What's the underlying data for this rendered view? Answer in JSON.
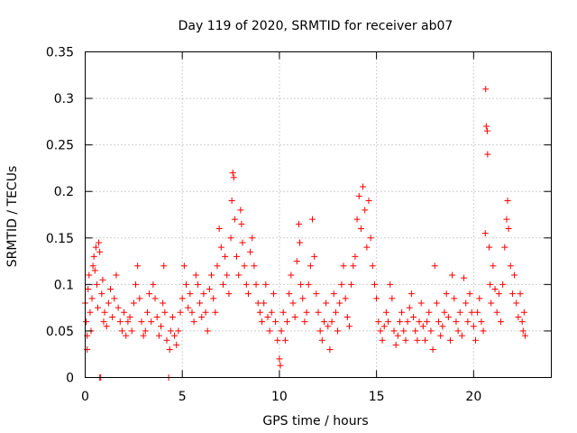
{
  "chart_data": {
    "type": "scatter",
    "title": "Day 119 of 2020, SRMTID for receiver ab07",
    "xlabel": "GPS time / hours",
    "ylabel": "SRMTID / TECUs",
    "xlim": [
      0,
      24
    ],
    "ylim": [
      0,
      0.35
    ],
    "x_ticks": [
      0,
      5,
      10,
      15,
      20
    ],
    "x_tick_labels": [
      "0",
      "5",
      "10",
      "15",
      "20"
    ],
    "y_ticks": [
      0,
      0.05,
      0.1,
      0.15,
      0.2,
      0.25,
      0.3,
      0.35
    ],
    "y_tick_labels": [
      "0",
      "0.05",
      "0.1",
      "0.15",
      "0.2",
      "0.25",
      "0.3",
      "0.35"
    ],
    "grid": true,
    "marker": "plus",
    "color": "#ff0000",
    "series": [
      {
        "name": "SRMTID",
        "points": [
          [
            0.0,
            0.08
          ],
          [
            0.05,
            0.06
          ],
          [
            0.1,
            0.045
          ],
          [
            0.1,
            0.03
          ],
          [
            0.15,
            0.095
          ],
          [
            0.2,
            0.11
          ],
          [
            0.25,
            0.07
          ],
          [
            0.3,
            0.05
          ],
          [
            0.35,
            0.085
          ],
          [
            0.4,
            0.12
          ],
          [
            0.45,
            0.13
          ],
          [
            0.5,
            0.115
          ],
          [
            0.55,
            0.14
          ],
          [
            0.6,
            0.1
          ],
          [
            0.65,
            0.075
          ],
          [
            0.7,
            0.145
          ],
          [
            0.75,
            0.135
          ],
          [
            0.75,
            0.0
          ],
          [
            0.8,
            0.0
          ],
          [
            0.85,
            0.09
          ],
          [
            0.9,
            0.105
          ],
          [
            0.95,
            0.06
          ],
          [
            1.0,
            0.07
          ],
          [
            1.1,
            0.055
          ],
          [
            1.2,
            0.08
          ],
          [
            1.3,
            0.095
          ],
          [
            1.4,
            0.065
          ],
          [
            1.5,
            0.085
          ],
          [
            1.6,
            0.11
          ],
          [
            1.7,
            0.075
          ],
          [
            1.8,
            0.06
          ],
          [
            1.9,
            0.05
          ],
          [
            2.0,
            0.07
          ],
          [
            2.1,
            0.045
          ],
          [
            2.2,
            0.06
          ],
          [
            2.3,
            0.065
          ],
          [
            2.4,
            0.05
          ],
          [
            2.5,
            0.08
          ],
          [
            2.6,
            0.1
          ],
          [
            2.7,
            0.12
          ],
          [
            2.8,
            0.085
          ],
          [
            2.9,
            0.06
          ],
          [
            3.0,
            0.045
          ],
          [
            3.1,
            0.05
          ],
          [
            3.2,
            0.07
          ],
          [
            3.3,
            0.09
          ],
          [
            3.4,
            0.06
          ],
          [
            3.5,
            0.1
          ],
          [
            3.6,
            0.085
          ],
          [
            3.7,
            0.065
          ],
          [
            3.8,
            0.045
          ],
          [
            3.9,
            0.055
          ],
          [
            4.0,
            0.08
          ],
          [
            4.05,
            0.12
          ],
          [
            4.1,
            0.07
          ],
          [
            4.2,
            0.04
          ],
          [
            4.3,
            0.0
          ],
          [
            4.35,
            0.03
          ],
          [
            4.4,
            0.05
          ],
          [
            4.5,
            0.065
          ],
          [
            4.6,
            0.045
          ],
          [
            4.7,
            0.035
          ],
          [
            4.8,
            0.05
          ],
          [
            4.9,
            0.07
          ],
          [
            5.0,
            0.085
          ],
          [
            5.1,
            0.12
          ],
          [
            5.2,
            0.1
          ],
          [
            5.3,
            0.075
          ],
          [
            5.4,
            0.09
          ],
          [
            5.5,
            0.07
          ],
          [
            5.6,
            0.06
          ],
          [
            5.7,
            0.11
          ],
          [
            5.8,
            0.1
          ],
          [
            5.9,
            0.08
          ],
          [
            6.0,
            0.065
          ],
          [
            6.1,
            0.09
          ],
          [
            6.2,
            0.07
          ],
          [
            6.3,
            0.05
          ],
          [
            6.4,
            0.095
          ],
          [
            6.5,
            0.11
          ],
          [
            6.6,
            0.085
          ],
          [
            6.7,
            0.07
          ],
          [
            6.8,
            0.12
          ],
          [
            6.9,
            0.16
          ],
          [
            7.0,
            0.14
          ],
          [
            7.1,
            0.1
          ],
          [
            7.2,
            0.13
          ],
          [
            7.3,
            0.11
          ],
          [
            7.4,
            0.09
          ],
          [
            7.5,
            0.15
          ],
          [
            7.55,
            0.19
          ],
          [
            7.6,
            0.22
          ],
          [
            7.65,
            0.215
          ],
          [
            7.7,
            0.17
          ],
          [
            7.8,
            0.13
          ],
          [
            7.9,
            0.11
          ],
          [
            8.0,
            0.18
          ],
          [
            8.05,
            0.165
          ],
          [
            8.1,
            0.145
          ],
          [
            8.2,
            0.12
          ],
          [
            8.3,
            0.1
          ],
          [
            8.4,
            0.09
          ],
          [
            8.5,
            0.135
          ],
          [
            8.6,
            0.15
          ],
          [
            8.7,
            0.12
          ],
          [
            8.8,
            0.1
          ],
          [
            8.9,
            0.08
          ],
          [
            9.0,
            0.07
          ],
          [
            9.1,
            0.06
          ],
          [
            9.2,
            0.08
          ],
          [
            9.3,
            0.1
          ],
          [
            9.4,
            0.065
          ],
          [
            9.5,
            0.05
          ],
          [
            9.6,
            0.07
          ],
          [
            9.7,
            0.09
          ],
          [
            9.8,
            0.06
          ],
          [
            9.9,
            0.04
          ],
          [
            10.0,
            0.02
          ],
          [
            10.05,
            0.013
          ],
          [
            10.1,
            0.05
          ],
          [
            10.2,
            0.07
          ],
          [
            10.3,
            0.04
          ],
          [
            10.4,
            0.06
          ],
          [
            10.5,
            0.09
          ],
          [
            10.6,
            0.11
          ],
          [
            10.7,
            0.08
          ],
          [
            10.8,
            0.065
          ],
          [
            10.9,
            0.125
          ],
          [
            11.0,
            0.165
          ],
          [
            11.05,
            0.145
          ],
          [
            11.1,
            0.1
          ],
          [
            11.2,
            0.085
          ],
          [
            11.3,
            0.06
          ],
          [
            11.4,
            0.07
          ],
          [
            11.5,
            0.1
          ],
          [
            11.6,
            0.12
          ],
          [
            11.7,
            0.17
          ],
          [
            11.8,
            0.13
          ],
          [
            11.9,
            0.09
          ],
          [
            12.0,
            0.07
          ],
          [
            12.1,
            0.05
          ],
          [
            12.2,
            0.04
          ],
          [
            12.3,
            0.06
          ],
          [
            12.4,
            0.08
          ],
          [
            12.5,
            0.055
          ],
          [
            12.6,
            0.03
          ],
          [
            12.7,
            0.06
          ],
          [
            12.8,
            0.09
          ],
          [
            12.9,
            0.07
          ],
          [
            13.0,
            0.05
          ],
          [
            13.1,
            0.08
          ],
          [
            13.2,
            0.1
          ],
          [
            13.3,
            0.12
          ],
          [
            13.4,
            0.085
          ],
          [
            13.5,
            0.065
          ],
          [
            13.6,
            0.055
          ],
          [
            13.7,
            0.1
          ],
          [
            13.8,
            0.12
          ],
          [
            13.9,
            0.13
          ],
          [
            14.0,
            0.17
          ],
          [
            14.1,
            0.195
          ],
          [
            14.2,
            0.16
          ],
          [
            14.3,
            0.205
          ],
          [
            14.4,
            0.18
          ],
          [
            14.5,
            0.14
          ],
          [
            14.6,
            0.19
          ],
          [
            14.7,
            0.15
          ],
          [
            14.8,
            0.12
          ],
          [
            14.9,
            0.1
          ],
          [
            15.0,
            0.085
          ],
          [
            15.1,
            0.06
          ],
          [
            15.2,
            0.05
          ],
          [
            15.3,
            0.04
          ],
          [
            15.4,
            0.055
          ],
          [
            15.5,
            0.07
          ],
          [
            15.6,
            0.06
          ],
          [
            15.7,
            0.1
          ],
          [
            15.8,
            0.085
          ],
          [
            15.9,
            0.05
          ],
          [
            16.0,
            0.035
          ],
          [
            16.1,
            0.045
          ],
          [
            16.2,
            0.06
          ],
          [
            16.3,
            0.07
          ],
          [
            16.4,
            0.05
          ],
          [
            16.5,
            0.04
          ],
          [
            16.6,
            0.06
          ],
          [
            16.7,
            0.075
          ],
          [
            16.8,
            0.09
          ],
          [
            16.9,
            0.065
          ],
          [
            17.0,
            0.05
          ],
          [
            17.1,
            0.04
          ],
          [
            17.2,
            0.06
          ],
          [
            17.3,
            0.08
          ],
          [
            17.4,
            0.055
          ],
          [
            17.5,
            0.04
          ],
          [
            17.6,
            0.06
          ],
          [
            17.7,
            0.07
          ],
          [
            17.8,
            0.05
          ],
          [
            17.9,
            0.03
          ],
          [
            18.0,
            0.12
          ],
          [
            18.1,
            0.08
          ],
          [
            18.2,
            0.06
          ],
          [
            18.3,
            0.045
          ],
          [
            18.4,
            0.055
          ],
          [
            18.5,
            0.07
          ],
          [
            18.6,
            0.09
          ],
          [
            18.7,
            0.065
          ],
          [
            18.8,
            0.04
          ],
          [
            18.9,
            0.11
          ],
          [
            19.0,
            0.085
          ],
          [
            19.1,
            0.06
          ],
          [
            19.2,
            0.05
          ],
          [
            19.3,
            0.07
          ],
          [
            19.4,
            0.045
          ],
          [
            19.5,
            0.107
          ],
          [
            19.6,
            0.08
          ],
          [
            19.7,
            0.06
          ],
          [
            19.8,
            0.09
          ],
          [
            19.9,
            0.07
          ],
          [
            20.0,
            0.055
          ],
          [
            20.1,
            0.04
          ],
          [
            20.2,
            0.07
          ],
          [
            20.3,
            0.085
          ],
          [
            20.4,
            0.06
          ],
          [
            20.5,
            0.05
          ],
          [
            20.6,
            0.155
          ],
          [
            20.62,
            0.31
          ],
          [
            20.65,
            0.27
          ],
          [
            20.7,
            0.265
          ],
          [
            20.72,
            0.24
          ],
          [
            20.8,
            0.14
          ],
          [
            20.85,
            0.1
          ],
          [
            20.9,
            0.08
          ],
          [
            21.0,
            0.12
          ],
          [
            21.1,
            0.095
          ],
          [
            21.2,
            0.07
          ],
          [
            21.3,
            0.09
          ],
          [
            21.4,
            0.06
          ],
          [
            21.5,
            0.1
          ],
          [
            21.6,
            0.14
          ],
          [
            21.7,
            0.17
          ],
          [
            21.75,
            0.19
          ],
          [
            21.8,
            0.16
          ],
          [
            21.9,
            0.12
          ],
          [
            22.0,
            0.09
          ],
          [
            22.1,
            0.11
          ],
          [
            22.2,
            0.08
          ],
          [
            22.3,
            0.065
          ],
          [
            22.4,
            0.09
          ],
          [
            22.5,
            0.06
          ],
          [
            22.55,
            0.05
          ],
          [
            22.6,
            0.07
          ],
          [
            22.65,
            0.045
          ]
        ]
      }
    ]
  }
}
